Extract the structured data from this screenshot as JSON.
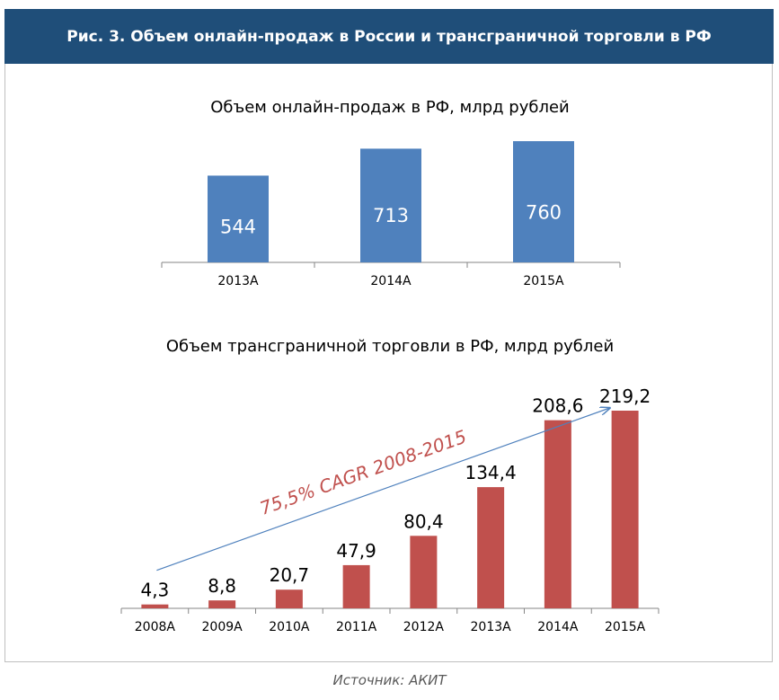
{
  "figure": {
    "banner_title": "Рис. 3. Объем онлайн-продаж в России и трансграничной торговли в РФ",
    "source": "Источник: АКИТ"
  },
  "chart_data": [
    {
      "type": "bar",
      "title": "Объем онлайн-продаж в РФ, млрд рублей",
      "categories": [
        "2013A",
        "2014A",
        "2015A"
      ],
      "values": [
        544,
        713,
        760
      ],
      "labels": [
        "544",
        "713",
        "760"
      ],
      "ylim": [
        0,
        800
      ],
      "color": "#4f81bd",
      "label_color": "#ffffff",
      "data_label_position": "inside"
    },
    {
      "type": "bar",
      "title": "Объем трансграничной торговли в РФ, млрд рублей",
      "categories": [
        "2008A",
        "2009A",
        "2010A",
        "2011A",
        "2012A",
        "2013A",
        "2014A",
        "2015A"
      ],
      "values": [
        4.3,
        8.8,
        20.7,
        47.9,
        80.4,
        134.4,
        208.6,
        219.2
      ],
      "labels": [
        "4,3",
        "8,8",
        "20,7",
        "47,9",
        "80,4",
        "134,4",
        "208,6",
        "219,2"
      ],
      "ylim": [
        0,
        219.2
      ],
      "color": "#c0504d",
      "label_color": "#000000",
      "data_label_position": "above",
      "annotation": {
        "text": "75,5% CAGR 2008-2015",
        "color": "#c0504d",
        "arrow_color": "#4f81bd",
        "from_category": "2008A",
        "to_category": "2015A"
      }
    }
  ]
}
